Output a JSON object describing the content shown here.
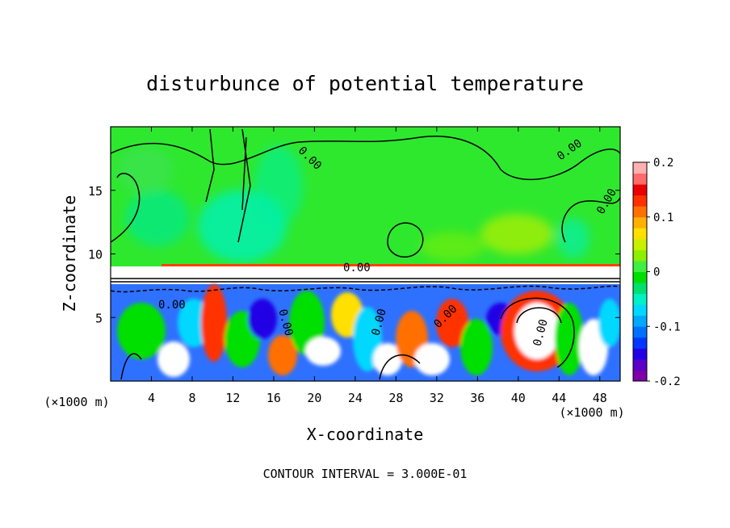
{
  "chart_data": {
    "type": "heatmap",
    "title": "disturbunce of potential temperature",
    "xlabel": "X-coordinate",
    "ylabel": "Z-coordinate",
    "x_unit": "(×1000 m)",
    "z_unit": "",
    "xlim": [
      0,
      50
    ],
    "ylim": [
      0,
      20
    ],
    "x_ticks": [
      "4",
      "8",
      "12",
      "16",
      "20",
      "24",
      "28",
      "32",
      "36",
      "40",
      "44",
      "48"
    ],
    "y_ticks": [
      "5",
      "10",
      "15"
    ],
    "colorbar": {
      "range": [
        -0.2,
        0.2
      ],
      "tick_labels": [
        "0.2",
        "0.1",
        "0",
        "-0.1",
        "-0.2"
      ],
      "colors": [
        "#7e00a8",
        "#5a00c8",
        "#2200e6",
        "#0038ff",
        "#0070ff",
        "#00a8ff",
        "#00d8ff",
        "#00f0c8",
        "#00e070",
        "#00e000",
        "#40f040",
        "#8cf000",
        "#c8f000",
        "#ffe000",
        "#ffb000",
        "#ff7000",
        "#ff3000",
        "#e80000",
        "#ff6a6a",
        "#ffb0b0"
      ]
    },
    "contour_labels": [
      "0.00",
      "0.00",
      "0.00",
      "0.00",
      "0.00",
      "0.00",
      "0.00",
      "0.00",
      "0.00"
    ],
    "annotation": "CONTOUR INTERVAL = 3.000E-01"
  }
}
